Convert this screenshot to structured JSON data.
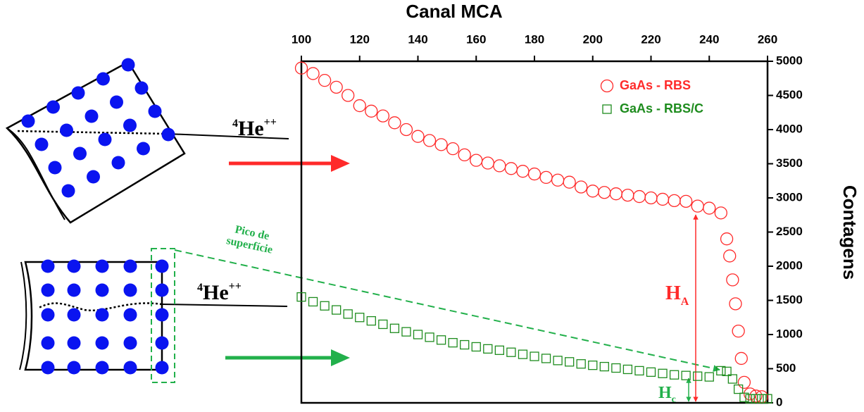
{
  "chart_data": {
    "type": "scatter",
    "xlabel": "Canal MCA",
    "ylabel": "Contagens",
    "xlim": [
      100,
      260
    ],
    "xticks": [
      100,
      120,
      140,
      160,
      180,
      200,
      220,
      240,
      260
    ],
    "ylim": [
      0,
      5000
    ],
    "yticks": [
      0,
      500,
      1000,
      1500,
      2000,
      2500,
      3000,
      3500,
      4000,
      4500,
      5000
    ],
    "legend": "upper right",
    "series": [
      {
        "name": "GaAs - RBS",
        "color": "#ff2a2a",
        "marker": "circle",
        "x": [
          100,
          104,
          108,
          112,
          116,
          120,
          124,
          128,
          132,
          136,
          140,
          144,
          148,
          152,
          156,
          160,
          164,
          168,
          172,
          176,
          180,
          184,
          188,
          192,
          196,
          200,
          204,
          208,
          212,
          216,
          220,
          224,
          228,
          232,
          236,
          240,
          244,
          246,
          247,
          248,
          249,
          250,
          251,
          252,
          254,
          256,
          258
        ],
        "values": [
          4900,
          4820,
          4720,
          4620,
          4500,
          4350,
          4270,
          4200,
          4100,
          4000,
          3900,
          3840,
          3780,
          3720,
          3630,
          3550,
          3510,
          3470,
          3430,
          3390,
          3350,
          3300,
          3260,
          3230,
          3160,
          3100,
          3080,
          3060,
          3040,
          3020,
          3000,
          2980,
          2960,
          2950,
          2880,
          2850,
          2780,
          2400,
          2150,
          1800,
          1450,
          1050,
          650,
          300,
          130,
          100,
          90
        ]
      },
      {
        "name": "GaAs - RBS/C",
        "color": "#1e8c1e",
        "marker": "square",
        "x": [
          100,
          104,
          108,
          112,
          116,
          120,
          124,
          128,
          132,
          136,
          140,
          144,
          148,
          152,
          156,
          160,
          164,
          168,
          172,
          176,
          180,
          184,
          188,
          192,
          196,
          200,
          204,
          208,
          212,
          216,
          220,
          224,
          228,
          232,
          236,
          240,
          244,
          246,
          248,
          250,
          252,
          254,
          256,
          258,
          260
        ],
        "values": [
          1550,
          1480,
          1420,
          1360,
          1300,
          1250,
          1200,
          1150,
          1090,
          1040,
          1000,
          960,
          920,
          880,
          850,
          820,
          790,
          770,
          740,
          710,
          680,
          650,
          620,
          600,
          570,
          550,
          530,
          510,
          490,
          470,
          450,
          430,
          410,
          400,
          390,
          380,
          470,
          460,
          350,
          200,
          80,
          60,
          60,
          60,
          60
        ]
      }
    ]
  },
  "annotations": {
    "beam_top": {
      "mass": "4",
      "element": "He",
      "charge": "++"
    },
    "beam_bottom": {
      "mass": "4",
      "element": "He",
      "charge": "++"
    },
    "surface_peak": [
      "Pico de",
      "superfície"
    ],
    "h_a": {
      "main": "H",
      "sub": "A"
    },
    "h_c": {
      "main": "H",
      "sub": "c"
    }
  }
}
